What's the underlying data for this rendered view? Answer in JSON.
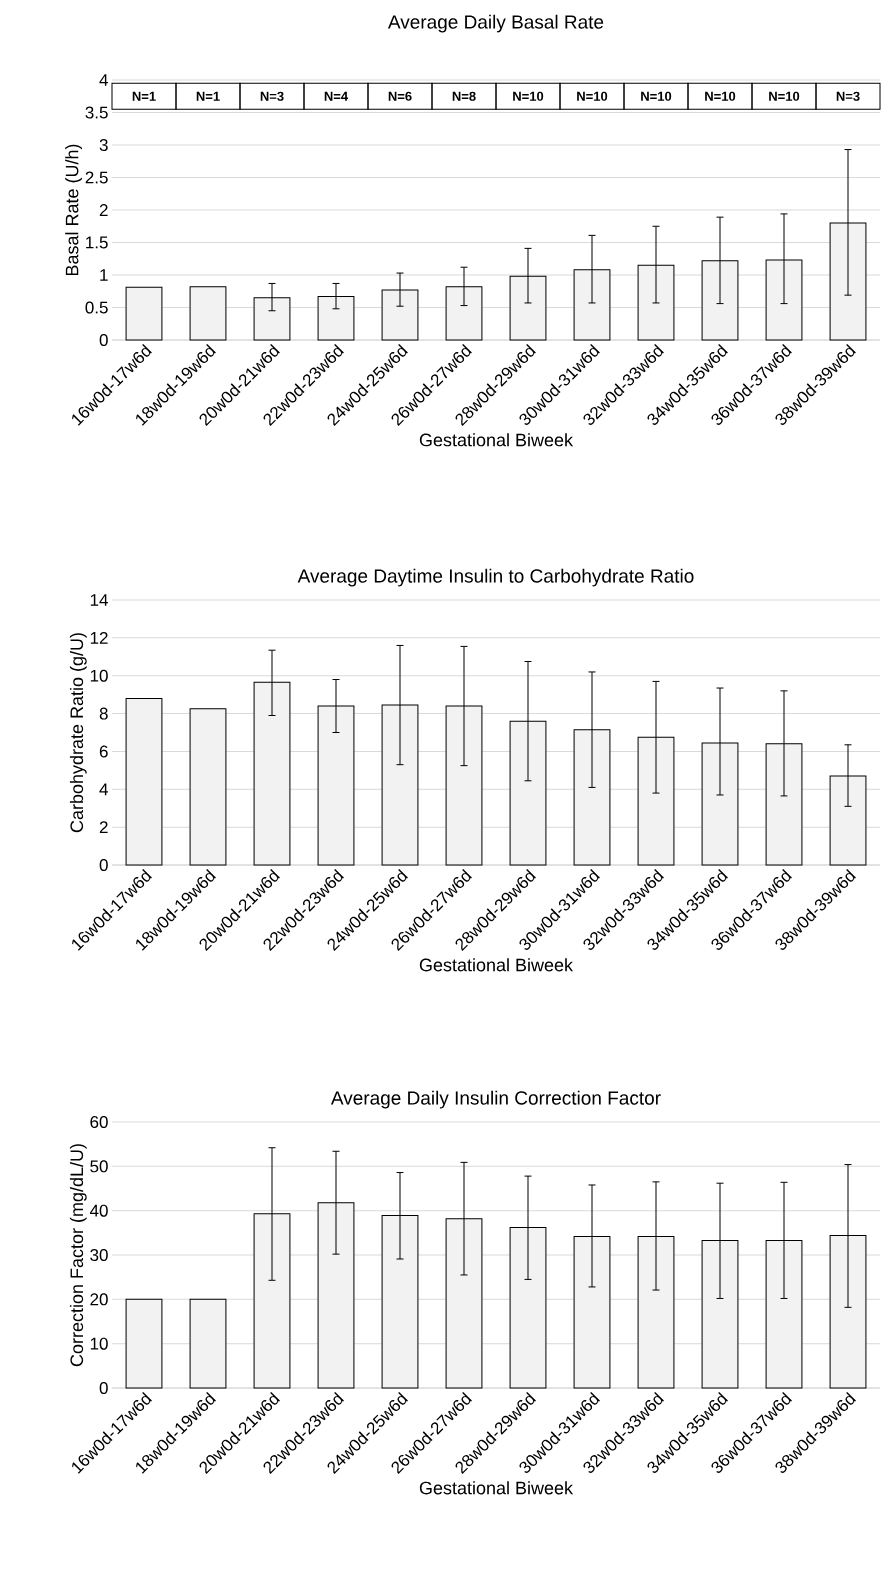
{
  "chart_data": [
    {
      "type": "bar",
      "title": "Average Daily Basal Rate",
      "xlabel": "Gestational Biweek",
      "ylabel": "Basal Rate (U/h)",
      "categories": [
        "16w0d-17w6d",
        "18w0d-19w6d",
        "20w0d-21w6d",
        "22w0d-23w6d",
        "24w0d-25w6d",
        "26w0d-27w6d",
        "28w0d-29w6d",
        "30w0d-31w6d",
        "32w0d-33w6d",
        "34w0d-35w6d",
        "36w0d-37w6d",
        "38w0d-39w6d"
      ],
      "values": [
        0.81,
        0.82,
        0.65,
        0.67,
        0.77,
        0.82,
        0.98,
        1.08,
        1.15,
        1.22,
        1.23,
        1.8
      ],
      "errors": [
        null,
        null,
        [
          0.45,
          0.87
        ],
        [
          0.48,
          0.87
        ],
        [
          0.52,
          1.03
        ],
        [
          0.53,
          1.12
        ],
        [
          0.57,
          1.41
        ],
        [
          0.57,
          1.61
        ],
        [
          0.57,
          1.75
        ],
        [
          0.56,
          1.89
        ],
        [
          0.56,
          1.94
        ],
        [
          0.69,
          2.93
        ]
      ],
      "color": "#f2f2f2",
      "ylim": [
        0,
        4
      ],
      "yticks": [
        0,
        0.5,
        1,
        1.5,
        2,
        2.5,
        3,
        3.5,
        4
      ],
      "grid": "y",
      "annotations": [
        "N=1",
        "N=1",
        "N=3",
        "N=4",
        "N=6",
        "N=8",
        "N=10",
        "N=10",
        "N=10",
        "N=10",
        "N=10",
        "N=3"
      ]
    },
    {
      "type": "bar",
      "title": "Average Daytime Insulin to Carbohydrate Ratio",
      "xlabel": "Gestational Biweek",
      "ylabel": "Carbohydrate Ratio (g/U)",
      "categories": [
        "16w0d-17w6d",
        "18w0d-19w6d",
        "20w0d-21w6d",
        "22w0d-23w6d",
        "24w0d-25w6d",
        "26w0d-27w6d",
        "28w0d-29w6d",
        "30w0d-31w6d",
        "32w0d-33w6d",
        "34w0d-35w6d",
        "36w0d-37w6d",
        "38w0d-39w6d"
      ],
      "values": [
        8.8,
        8.25,
        9.65,
        8.4,
        8.45,
        8.4,
        7.6,
        7.15,
        6.75,
        6.45,
        6.4,
        4.7
      ],
      "errors": [
        null,
        null,
        [
          7.9,
          11.35
        ],
        [
          7.0,
          9.8
        ],
        [
          5.3,
          11.6
        ],
        [
          5.25,
          11.55
        ],
        [
          4.45,
          10.75
        ],
        [
          4.1,
          10.2
        ],
        [
          3.8,
          9.7
        ],
        [
          3.7,
          9.35
        ],
        [
          3.65,
          9.2
        ],
        [
          3.1,
          6.35
        ]
      ],
      "color": "#f2f2f2",
      "ylim": [
        0,
        14
      ],
      "yticks": [
        0,
        2,
        4,
        6,
        8,
        10,
        12,
        14
      ],
      "grid": "y"
    },
    {
      "type": "bar",
      "title": "Average Daily Insulin Correction Factor",
      "xlabel": "Gestational Biweek",
      "ylabel": "Correction Factor (mg/dL/U)",
      "categories": [
        "16w0d-17w6d",
        "18w0d-19w6d",
        "20w0d-21w6d",
        "22w0d-23w6d",
        "24w0d-25w6d",
        "26w0d-27w6d",
        "28w0d-29w6d",
        "30w0d-31w6d",
        "32w0d-33w6d",
        "34w0d-35w6d",
        "36w0d-37w6d",
        "38w0d-39w6d"
      ],
      "values": [
        20,
        20,
        39.3,
        41.8,
        38.9,
        38.2,
        36.2,
        34.2,
        34.2,
        33.3,
        33.3,
        34.4
      ],
      "errors": [
        null,
        null,
        [
          24.3,
          54.2
        ],
        [
          30.2,
          53.4
        ],
        [
          29.1,
          48.6
        ],
        [
          25.5,
          50.9
        ],
        [
          24.5,
          47.8
        ],
        [
          22.8,
          45.8
        ],
        [
          22.1,
          46.5
        ],
        [
          20.2,
          46.2
        ],
        [
          20.2,
          46.4
        ],
        [
          18.2,
          50.4
        ]
      ],
      "color": "#f2f2f2",
      "ylim": [
        0,
        60
      ],
      "yticks": [
        0,
        10,
        20,
        30,
        40,
        50,
        60
      ],
      "grid": "y"
    }
  ]
}
